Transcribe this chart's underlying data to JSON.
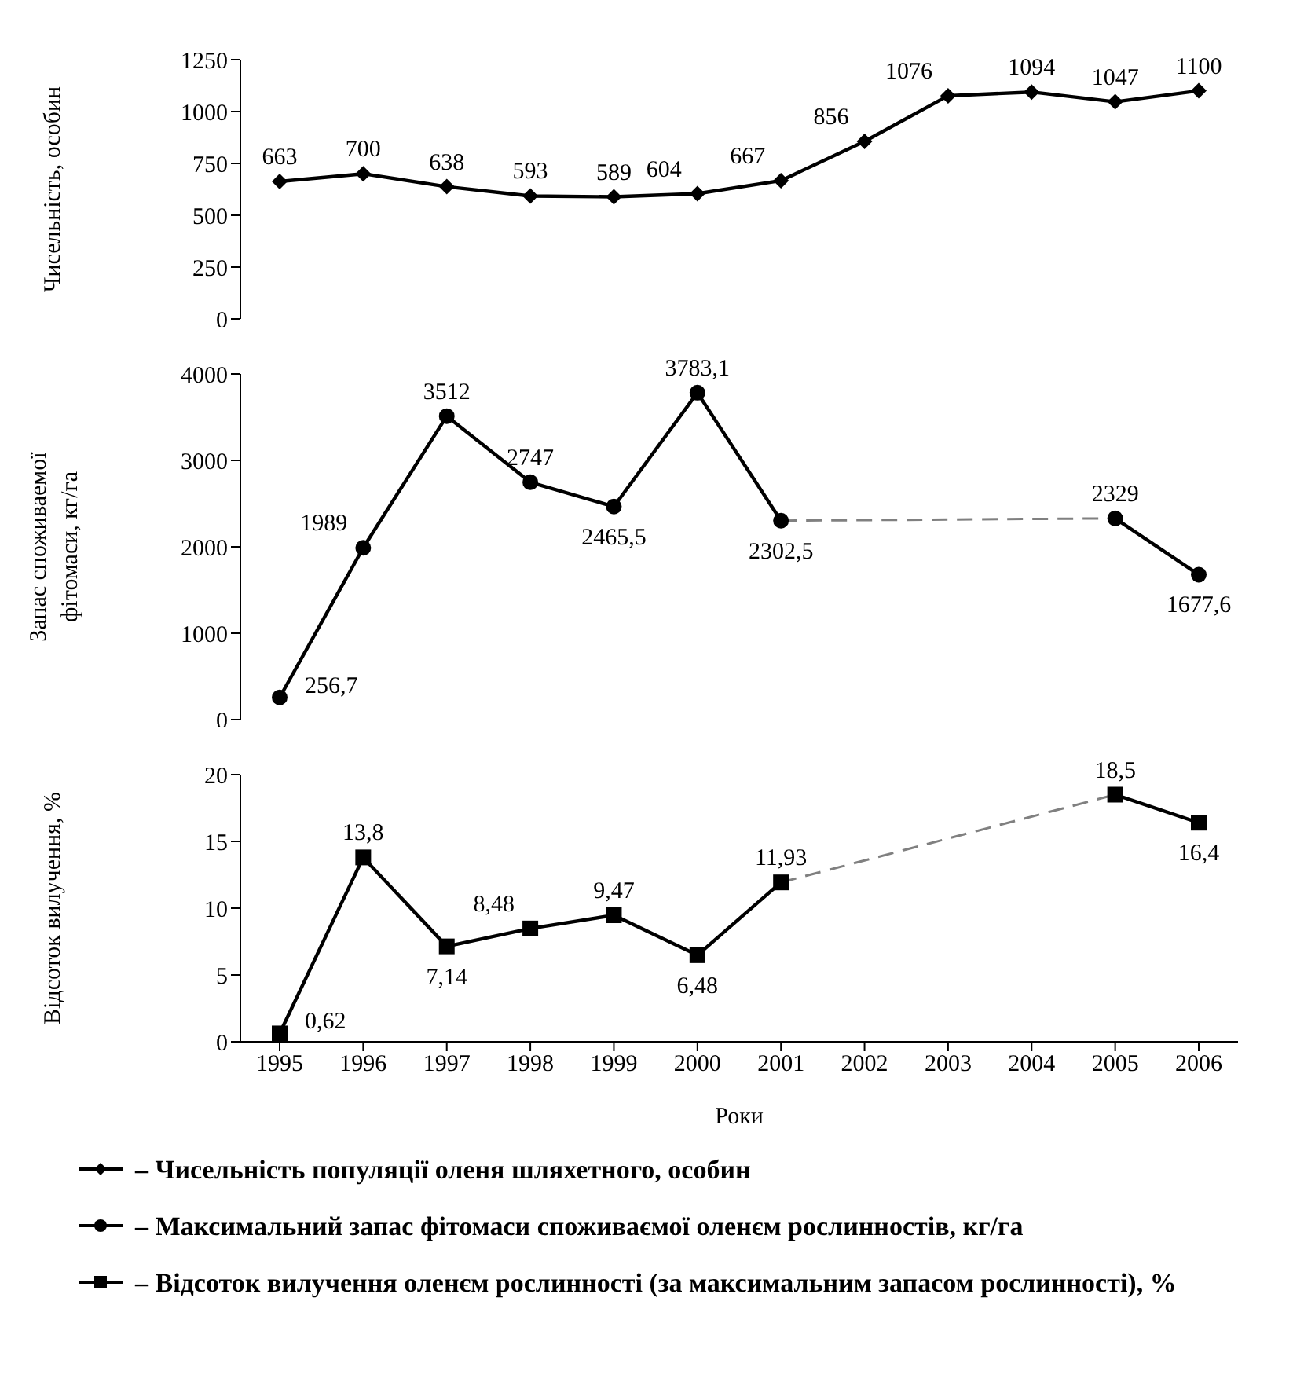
{
  "chart_data": [
    {
      "type": "line",
      "categories": [
        "1995",
        "1996",
        "1997",
        "1998",
        "1999",
        "2000",
        "2001",
        "2002",
        "2003",
        "2004",
        "2005",
        "2006"
      ],
      "ylabel": "Чисельність, особин",
      "ylim": [
        0,
        1250
      ],
      "yticks": [
        0,
        250,
        500,
        750,
        1000,
        1250
      ],
      "tick_labels": "y",
      "marker": "diamond",
      "line_style": "solid",
      "series": [
        {
          "name": "– Чисельність популяції оленя шляхетного, особин",
          "color": "#000000",
          "values": [
            663,
            700,
            638,
            593,
            589,
            604,
            667,
            856,
            1076,
            1094,
            1047,
            1100
          ],
          "value_labels": [
            "663",
            "700",
            "638",
            "593",
            "589",
            "604",
            "667",
            "856",
            "1076",
            "1094",
            "1047",
            "1100"
          ]
        }
      ]
    },
    {
      "type": "line",
      "categories": [
        "1995",
        "1996",
        "1997",
        "1998",
        "1999",
        "2000",
        "2001",
        "2002",
        "2003",
        "2004",
        "2005",
        "2006"
      ],
      "ylabel": "Запас споживаемої фітомаси, кг/га",
      "ylim": [
        0,
        4000
      ],
      "yticks": [
        0,
        1000,
        2000,
        3000,
        4000
      ],
      "tick_labels": "y",
      "marker": "circle",
      "line_style": "solid",
      "series": [
        {
          "name": "– Максимальний запас фітомаси споживаємої оленєм рослинностів, кг/га",
          "color": "#000000",
          "values": [
            256.7,
            1989,
            3512,
            2747,
            2465.5,
            3783.1,
            2302.5,
            null,
            null,
            null,
            2329,
            1677.6
          ],
          "value_labels": [
            "256,7",
            "1989",
            "3512",
            "2747",
            "2465,5",
            "3783,1",
            "2302,5",
            null,
            null,
            null,
            "2329",
            "1677,6"
          ]
        },
        {
          "color": "#808080",
          "type": "line",
          "line_style": "dashed",
          "marker": "none",
          "values": [
            null,
            null,
            null,
            null,
            null,
            null,
            2302.5,
            null,
            null,
            null,
            2329,
            null
          ]
        }
      ]
    },
    {
      "type": "line",
      "categories": [
        "1995",
        "1996",
        "1997",
        "1998",
        "1999",
        "2000",
        "2001",
        "2002",
        "2003",
        "2004",
        "2005",
        "2006"
      ],
      "xlabel": "Роки",
      "ylabel": "Відсоток вилучення, %",
      "ylim": [
        0,
        20
      ],
      "yticks": [
        0,
        5,
        10,
        15,
        20
      ],
      "marker": "square",
      "line_style": "solid",
      "legend": "bottom",
      "series": [
        {
          "name": "– Відсоток вилучення оленєм рослинності (за максимальним запасом рослинності), %",
          "color": "#000000",
          "values": [
            0.62,
            13.8,
            7.14,
            8.48,
            9.47,
            6.48,
            11.93,
            null,
            null,
            null,
            18.5,
            16.4
          ],
          "value_labels": [
            "0,62",
            "13,8",
            "7,14",
            "8,48",
            "9,47",
            "6,48",
            "11,93",
            null,
            null,
            null,
            "18,5",
            "16,4"
          ]
        },
        {
          "color": "#808080",
          "type": "line",
          "line_style": "dashed",
          "marker": "none",
          "values": [
            null,
            null,
            null,
            null,
            null,
            null,
            11.93,
            null,
            null,
            null,
            18.5,
            null
          ]
        }
      ]
    }
  ]
}
